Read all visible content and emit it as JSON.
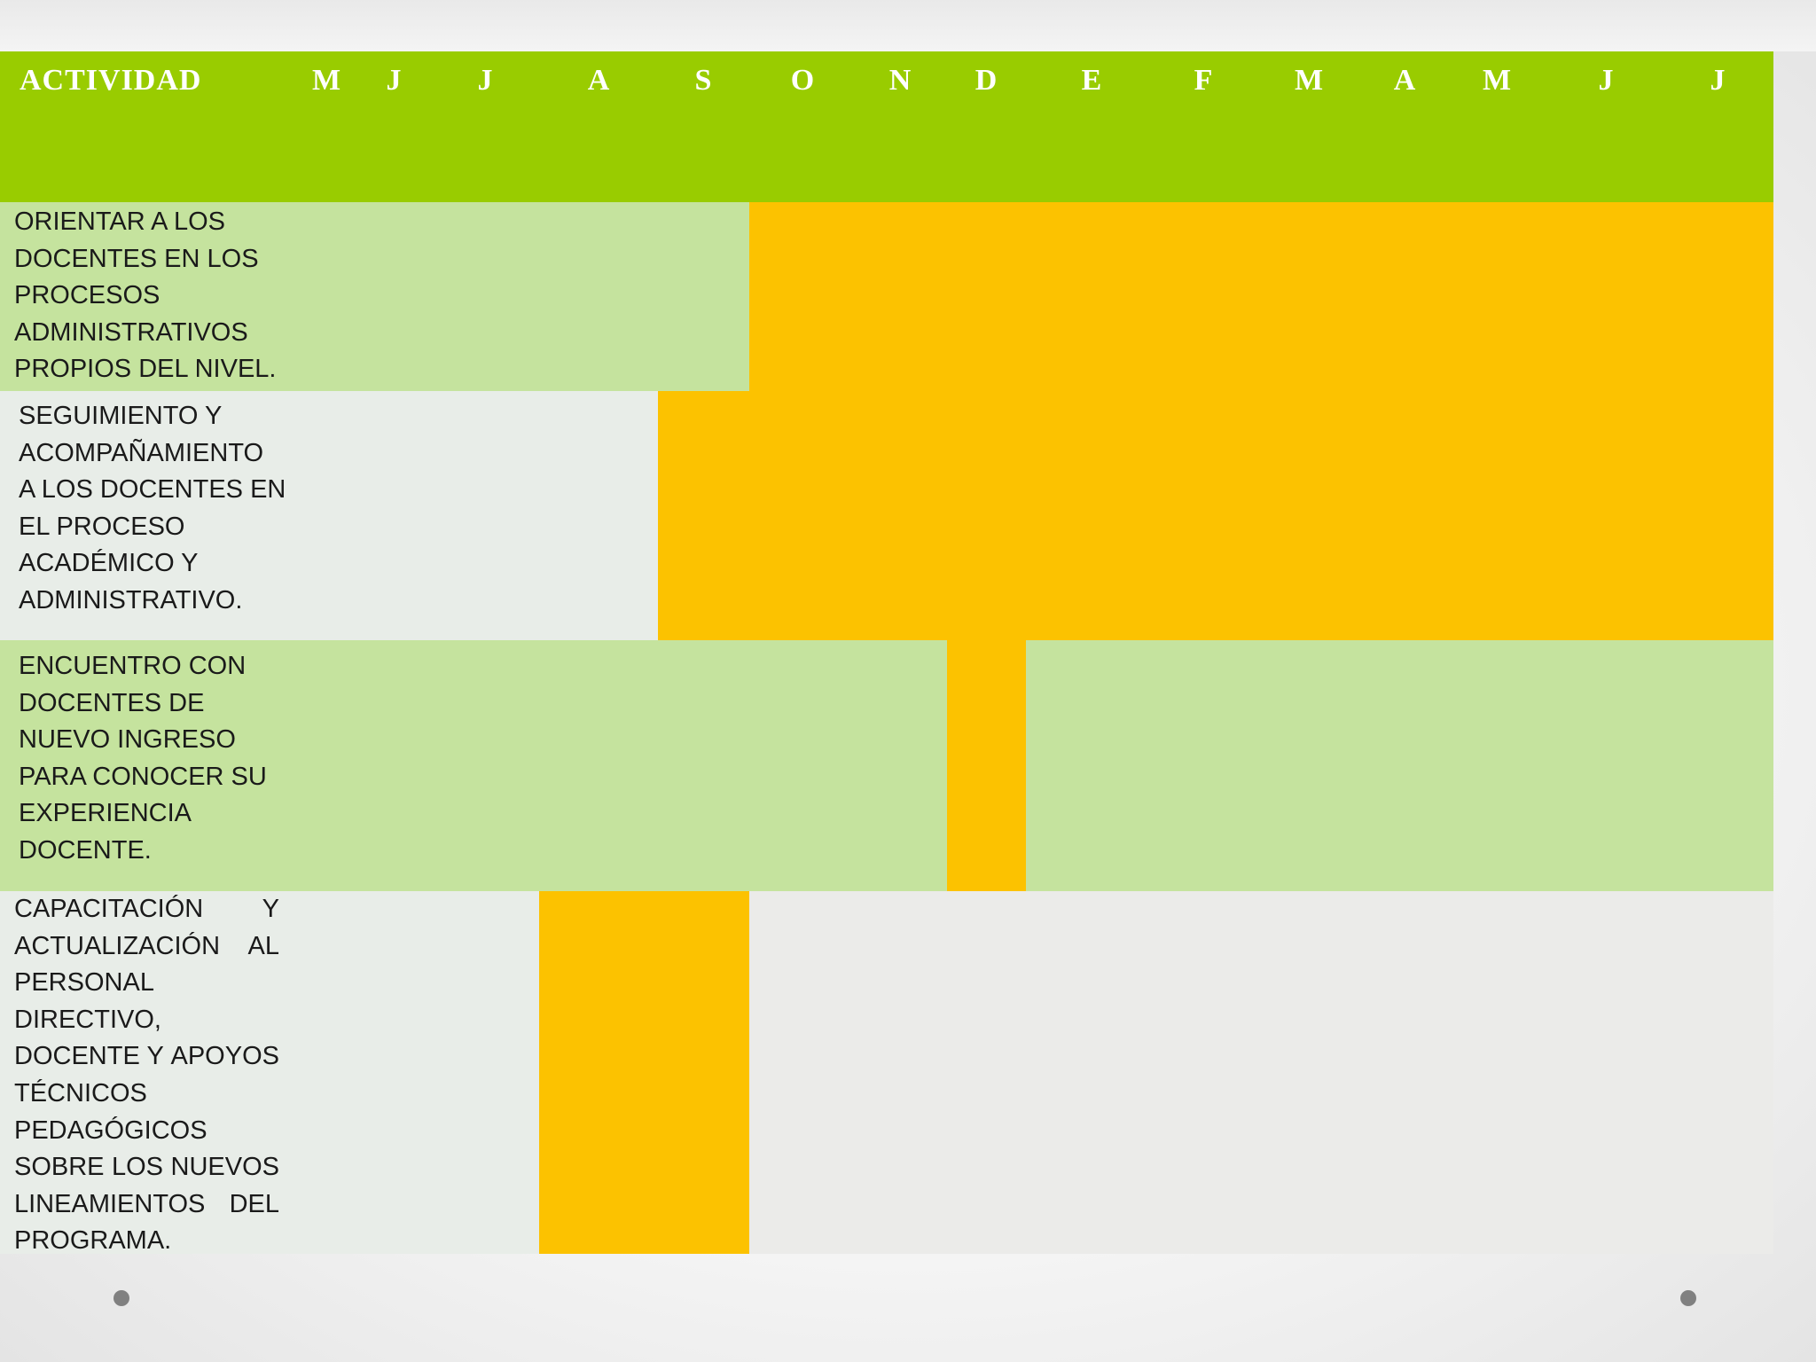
{
  "header": {
    "title": "ACTIVIDAD",
    "months": [
      "M",
      "J",
      "J",
      "A",
      "S",
      "O",
      "N",
      "D",
      "E",
      "F",
      "M",
      "A",
      "M",
      "J",
      "J"
    ]
  },
  "colors": {
    "header_green": "#99cc00",
    "light_green": "#c5e39e",
    "light_gray": "#e8ede8",
    "orange": "#fcc200",
    "text": "#1a1a1a"
  },
  "rows": [
    {
      "label_lines": [
        "ORIENTAR A LOS",
        "DOCENTES EN LOS",
        "PROCESOS",
        "ADMINISTRATIVOS",
        "PROPIOS DEL NIVEL."
      ]
    },
    {
      "label_lines": [
        "SEGUIMIENTO Y",
        "ACOMPAÑAMIENTO",
        "A LOS DOCENTES EN",
        "EL PROCESO",
        "ACADÉMICO Y",
        "ADMINISTRATIVO."
      ]
    },
    {
      "label_lines": [
        "ENCUENTRO CON",
        "DOCENTES DE",
        "NUEVO INGRESO",
        "PARA CONOCER SU",
        "EXPERIENCIA",
        "DOCENTE."
      ]
    },
    {
      "label_lines": [
        "CAPACITACIÓN Y",
        "ACTUALIZACIÓN AL",
        "PERSONAL",
        "DIRECTIVO,",
        "DOCENTE Y APOYOS",
        "TÉCNICOS",
        "PEDAGÓGICOS",
        "SOBRE LOS NUEVOS",
        "LINEAMIENTOS DEL",
        "PROGRAMA."
      ]
    }
  ]
}
